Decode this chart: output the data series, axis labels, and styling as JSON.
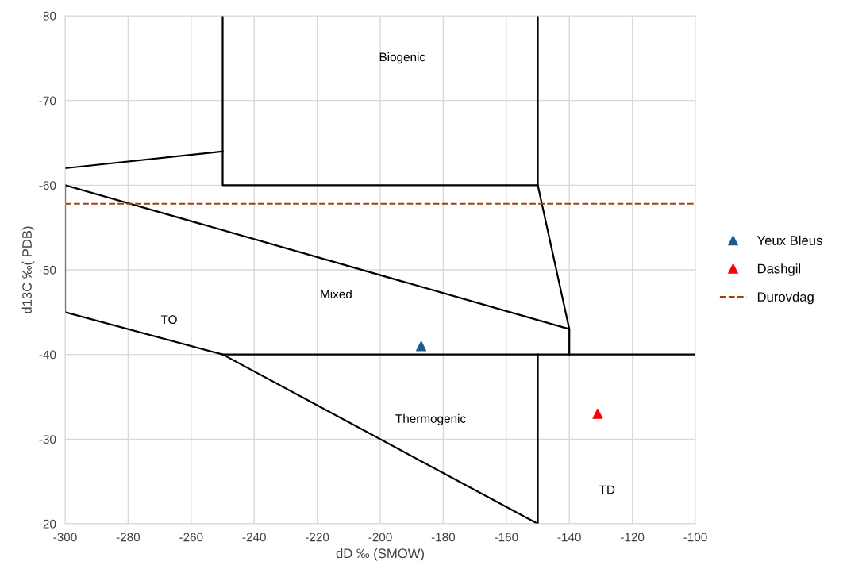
{
  "chart_data": {
    "type": "line",
    "xlabel": "dD ‰ (SMOW)",
    "ylabel": "d13C ‰( PDB)",
    "xlim": [
      -300,
      -100
    ],
    "xticks": [
      -300,
      -280,
      -260,
      -240,
      -220,
      -200,
      -180,
      -160,
      -140,
      -120,
      -100
    ],
    "ylim": [
      -20,
      -80
    ],
    "yticks": [
      -80,
      -70,
      -60,
      -50,
      -40,
      -30,
      -20
    ],
    "grid": true,
    "legend": "right",
    "line_style": "solid",
    "marker": "none",
    "series": [
      {
        "color": "#000000",
        "x": [
          -250,
          -250,
          -150,
          -150
        ],
        "values": [
          -80,
          -60,
          -60,
          -80
        ]
      },
      {
        "color": "#000000",
        "x": [
          -300,
          -250
        ],
        "values": [
          -62,
          -64
        ]
      },
      {
        "color": "#000000",
        "x": [
          -300,
          -140,
          -140
        ],
        "values": [
          -60,
          -43,
          -40
        ]
      },
      {
        "color": "#000000",
        "x": [
          -150,
          -140
        ],
        "values": [
          -60,
          -43
        ]
      },
      {
        "color": "#000000",
        "x": [
          -300,
          -300,
          -250,
          -150
        ],
        "values": [
          -60,
          -45,
          -40,
          -40
        ]
      },
      {
        "color": "#000000",
        "x": [
          -250,
          -150
        ],
        "values": [
          -40,
          -20
        ]
      },
      {
        "color": "#000000",
        "x": [
          -100,
          -150,
          -150
        ],
        "values": [
          -40,
          -40,
          -20
        ]
      },
      {
        "name": "Yeux Bleus",
        "type": "scatter",
        "marker": "triangle",
        "color": "#1f5a8c",
        "x": [
          -187
        ],
        "values": [
          -41
        ]
      },
      {
        "name": "Dashgil",
        "type": "scatter",
        "marker": "triangle",
        "color": "#ff0000",
        "x": [
          -131
        ],
        "values": [
          -33
        ]
      }
    ],
    "ref_lines": [
      {
        "axis": "y",
        "value": -57.8,
        "label": "Durovdag",
        "color": "#a0420a",
        "line_style": "dashed"
      }
    ],
    "annotations": [
      "Biogenic",
      "Mixed",
      "TO",
      "Thermogenic",
      "TD"
    ]
  }
}
